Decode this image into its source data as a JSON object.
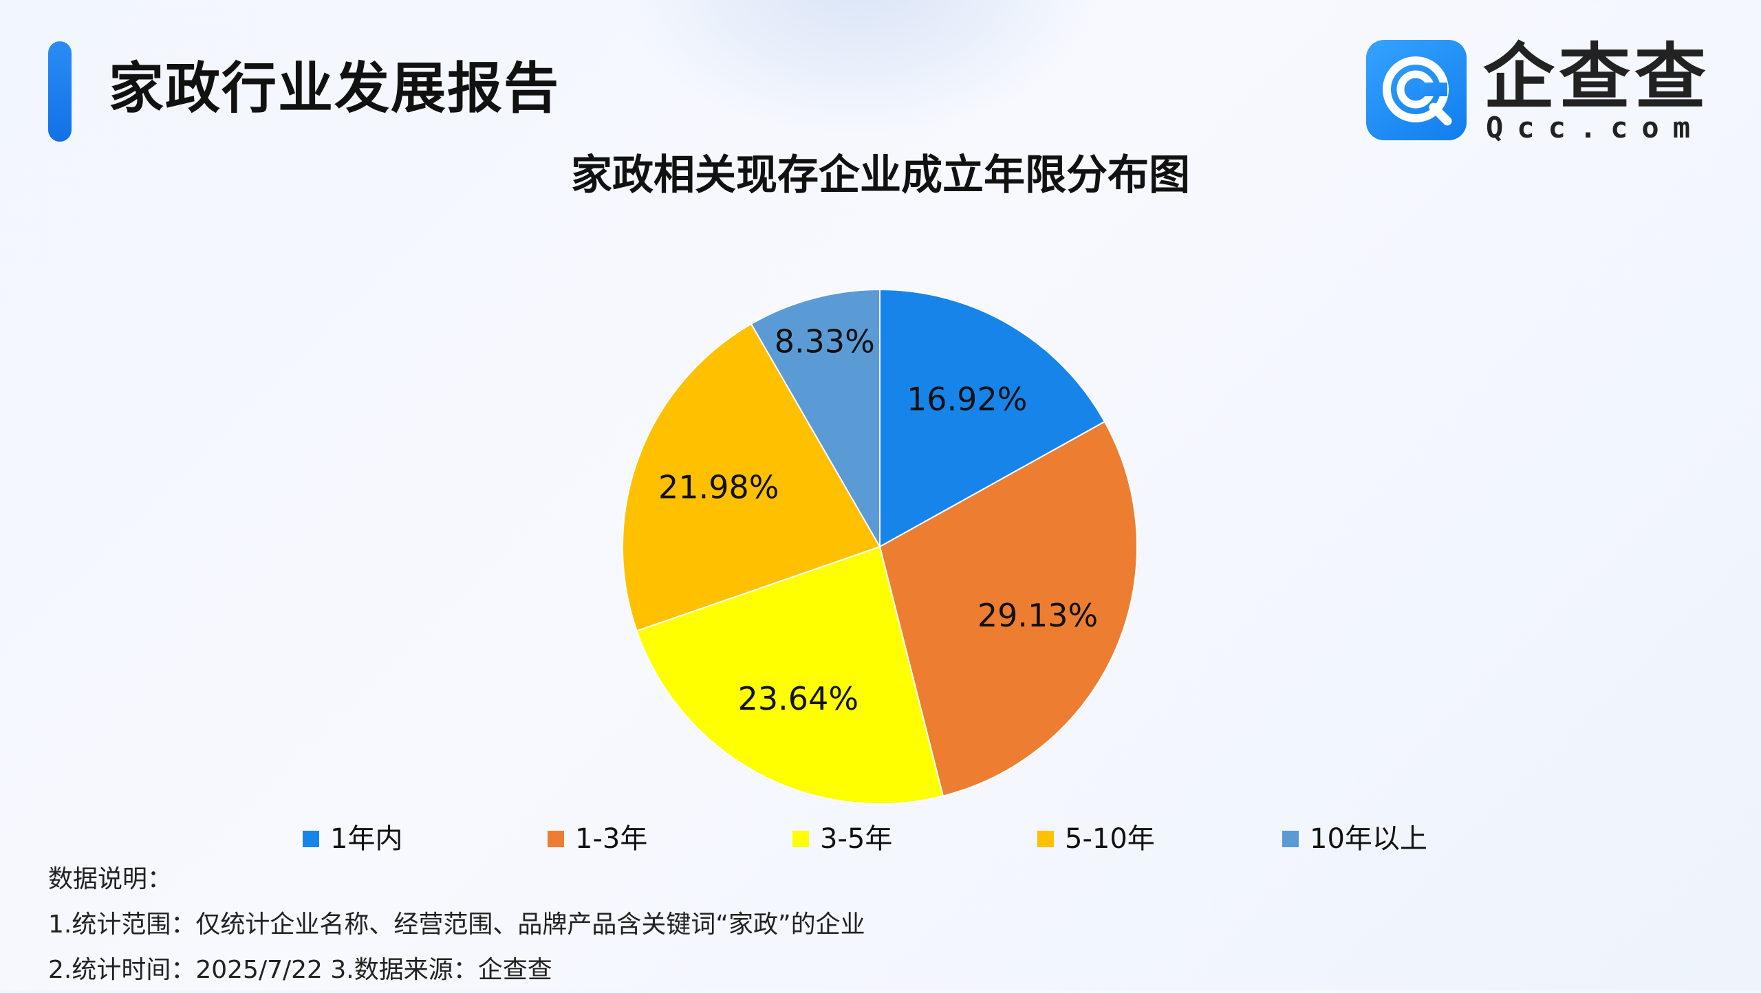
{
  "header": {
    "title": "家政行业发展报告"
  },
  "brand": {
    "name": "企查查",
    "domain": "Qcc.com",
    "logo_icon": "qcc-logo-icon"
  },
  "chart_data": {
    "type": "pie",
    "title": "家政相关现存企业成立年限分布图",
    "categories": [
      "1年内",
      "1-3年",
      "3-5年",
      "5-10年",
      "10年以上"
    ],
    "values": [
      16.92,
      29.13,
      23.64,
      21.98,
      8.33
    ],
    "labels": [
      "16.92%",
      "29.13%",
      "23.64%",
      "21.98%",
      "8.33%"
    ],
    "colors": [
      "#1784ea",
      "#ed7d31",
      "#ffff00",
      "#ffc000",
      "#5b9bd5"
    ],
    "start_angle": "12 o'clock",
    "direction": "clockwise",
    "legend_position": "bottom"
  },
  "notes": {
    "heading": "数据说明：",
    "line1": "1.统计范围：仅统计企业名称、经营范围、品牌产品含关键词“家政”的企业",
    "line2": "2.统计时间：2025/7/22 3.数据来源：企查查"
  }
}
